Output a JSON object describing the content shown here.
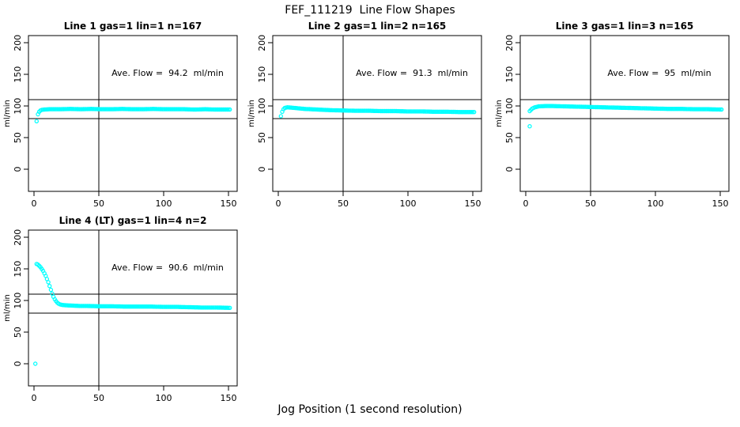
{
  "figure": {
    "title": "FEF_111219  Line Flow Shapes",
    "xlabel": "Jog Position (1 second resolution)",
    "background": "#FFFFFF",
    "axis_color": "#000000"
  },
  "chart_data": [
    {
      "type": "scatter",
      "title": "Line 1 gas=1 lin=1 n=167",
      "line": 1,
      "gas": 1,
      "lin": 1,
      "n": 167,
      "annotation": "Ave. Flow =  94.2  ml/min",
      "ave_flow_ml_min": 94.2,
      "ylabel": "ml/min",
      "x_ticks": [
        0,
        50,
        100,
        150
      ],
      "y_ticks": [
        0,
        50,
        100,
        150,
        200
      ],
      "xlim": [
        -4.3,
        156.7
      ],
      "ylim": [
        -35,
        211.5
      ],
      "vline_x": 50,
      "hlines_y": [
        110,
        80
      ],
      "marker_color": "#00FFFF",
      "points": [
        [
          2,
          76
        ],
        [
          3,
          87
        ],
        [
          4,
          91
        ],
        [
          5,
          93
        ],
        [
          6,
          94
        ],
        [
          8,
          94.5
        ],
        [
          12,
          95
        ],
        [
          20,
          95
        ],
        [
          28,
          95.5
        ],
        [
          36,
          95
        ],
        [
          44,
          95.5
        ],
        [
          52,
          95
        ],
        [
          60,
          95
        ],
        [
          68,
          95.5
        ],
        [
          76,
          95
        ],
        [
          84,
          95
        ],
        [
          92,
          95.5
        ],
        [
          100,
          95
        ],
        [
          108,
          95
        ],
        [
          116,
          95
        ],
        [
          124,
          94.5
        ],
        [
          132,
          95
        ],
        [
          140,
          94.5
        ],
        [
          151,
          94.5
        ]
      ],
      "outlier_points": []
    },
    {
      "type": "scatter",
      "title": "Line 2 gas=1 lin=2 n=165",
      "line": 2,
      "gas": 1,
      "lin": 2,
      "n": 165,
      "annotation": "Ave. Flow =  91.3  ml/min",
      "ave_flow_ml_min": 91.3,
      "ylabel": "ml/min",
      "x_ticks": [
        0,
        50,
        100,
        150
      ],
      "y_ticks": [
        0,
        50,
        100,
        150,
        200
      ],
      "xlim": [
        -4.3,
        156.7
      ],
      "ylim": [
        -35,
        211.5
      ],
      "vline_x": 50,
      "hlines_y": [
        110,
        80
      ],
      "marker_color": "#00FFFF",
      "points": [
        [
          2,
          84
        ],
        [
          3,
          91
        ],
        [
          4,
          95
        ],
        [
          5,
          97
        ],
        [
          7,
          98
        ],
        [
          10,
          97.5
        ],
        [
          15,
          96.5
        ],
        [
          20,
          95.5
        ],
        [
          30,
          94.5
        ],
        [
          40,
          93.5
        ],
        [
          50,
          93
        ],
        [
          60,
          92.5
        ],
        [
          70,
          92.5
        ],
        [
          80,
          92
        ],
        [
          90,
          92
        ],
        [
          100,
          91.5
        ],
        [
          110,
          91.5
        ],
        [
          120,
          91
        ],
        [
          130,
          91
        ],
        [
          140,
          90.5
        ],
        [
          151,
          90.5
        ]
      ],
      "outlier_points": []
    },
    {
      "type": "scatter",
      "title": "Line 3 gas=1 lin=3 n=165",
      "line": 3,
      "gas": 1,
      "lin": 3,
      "n": 165,
      "annotation": "Ave. Flow =  95  ml/min",
      "ave_flow_ml_min": 95,
      "ylabel": "ml/min",
      "x_ticks": [
        0,
        50,
        100,
        150
      ],
      "y_ticks": [
        0,
        50,
        100,
        150,
        200
      ],
      "xlim": [
        -4.3,
        156.7
      ],
      "ylim": [
        -35,
        211.5
      ],
      "vline_x": 50,
      "hlines_y": [
        110,
        80
      ],
      "marker_color": "#00FFFF",
      "points": [
        [
          3,
          92
        ],
        [
          4,
          94
        ],
        [
          5,
          96
        ],
        [
          7,
          98
        ],
        [
          10,
          99.5
        ],
        [
          15,
          100
        ],
        [
          20,
          100
        ],
        [
          30,
          99.5
        ],
        [
          40,
          99
        ],
        [
          50,
          98.5
        ],
        [
          60,
          98
        ],
        [
          70,
          97.5
        ],
        [
          80,
          97
        ],
        [
          90,
          96.5
        ],
        [
          100,
          96
        ],
        [
          110,
          95.5
        ],
        [
          120,
          95.5
        ],
        [
          130,
          95
        ],
        [
          140,
          95
        ],
        [
          151,
          94.5
        ]
      ],
      "outlier_points": [
        [
          3,
          68
        ]
      ]
    },
    {
      "type": "scatter",
      "title": "Line 4 (LT) gas=1 lin=4 n=2",
      "line": 4,
      "gas": 1,
      "lin": 4,
      "n": 2,
      "annotation": "Ave. Flow =  90.6  ml/min",
      "ave_flow_ml_min": 90.6,
      "ylabel": "ml/min",
      "x_ticks": [
        0,
        50,
        100,
        150
      ],
      "y_ticks": [
        0,
        50,
        100,
        150,
        200
      ],
      "xlim": [
        -4.3,
        156.7
      ],
      "ylim": [
        -35,
        211.5
      ],
      "vline_x": 50,
      "hlines_y": [
        110,
        80
      ],
      "marker_color": "#00FFFF",
      "points": [
        [
          2,
          158
        ],
        [
          3,
          157
        ],
        [
          4,
          155
        ],
        [
          5,
          153
        ],
        [
          6,
          150
        ],
        [
          7,
          147
        ],
        [
          8,
          143
        ],
        [
          9,
          139
        ],
        [
          10,
          134
        ],
        [
          11,
          129
        ],
        [
          12,
          123
        ],
        [
          13,
          117
        ],
        [
          14,
          111
        ],
        [
          15,
          106
        ],
        [
          16,
          102
        ],
        [
          17,
          99
        ],
        [
          18,
          96.5
        ],
        [
          19,
          95
        ],
        [
          20,
          94
        ],
        [
          22,
          93
        ],
        [
          25,
          92.5
        ],
        [
          30,
          92
        ],
        [
          35,
          91.5
        ],
        [
          40,
          91.5
        ],
        [
          50,
          91
        ],
        [
          60,
          91
        ],
        [
          70,
          90.5
        ],
        [
          80,
          90.5
        ],
        [
          90,
          90.5
        ],
        [
          100,
          90
        ],
        [
          110,
          90
        ],
        [
          120,
          89.5
        ],
        [
          130,
          89
        ],
        [
          140,
          89
        ],
        [
          151,
          88.5
        ]
      ],
      "outlier_points": [
        [
          1,
          0
        ]
      ]
    }
  ]
}
